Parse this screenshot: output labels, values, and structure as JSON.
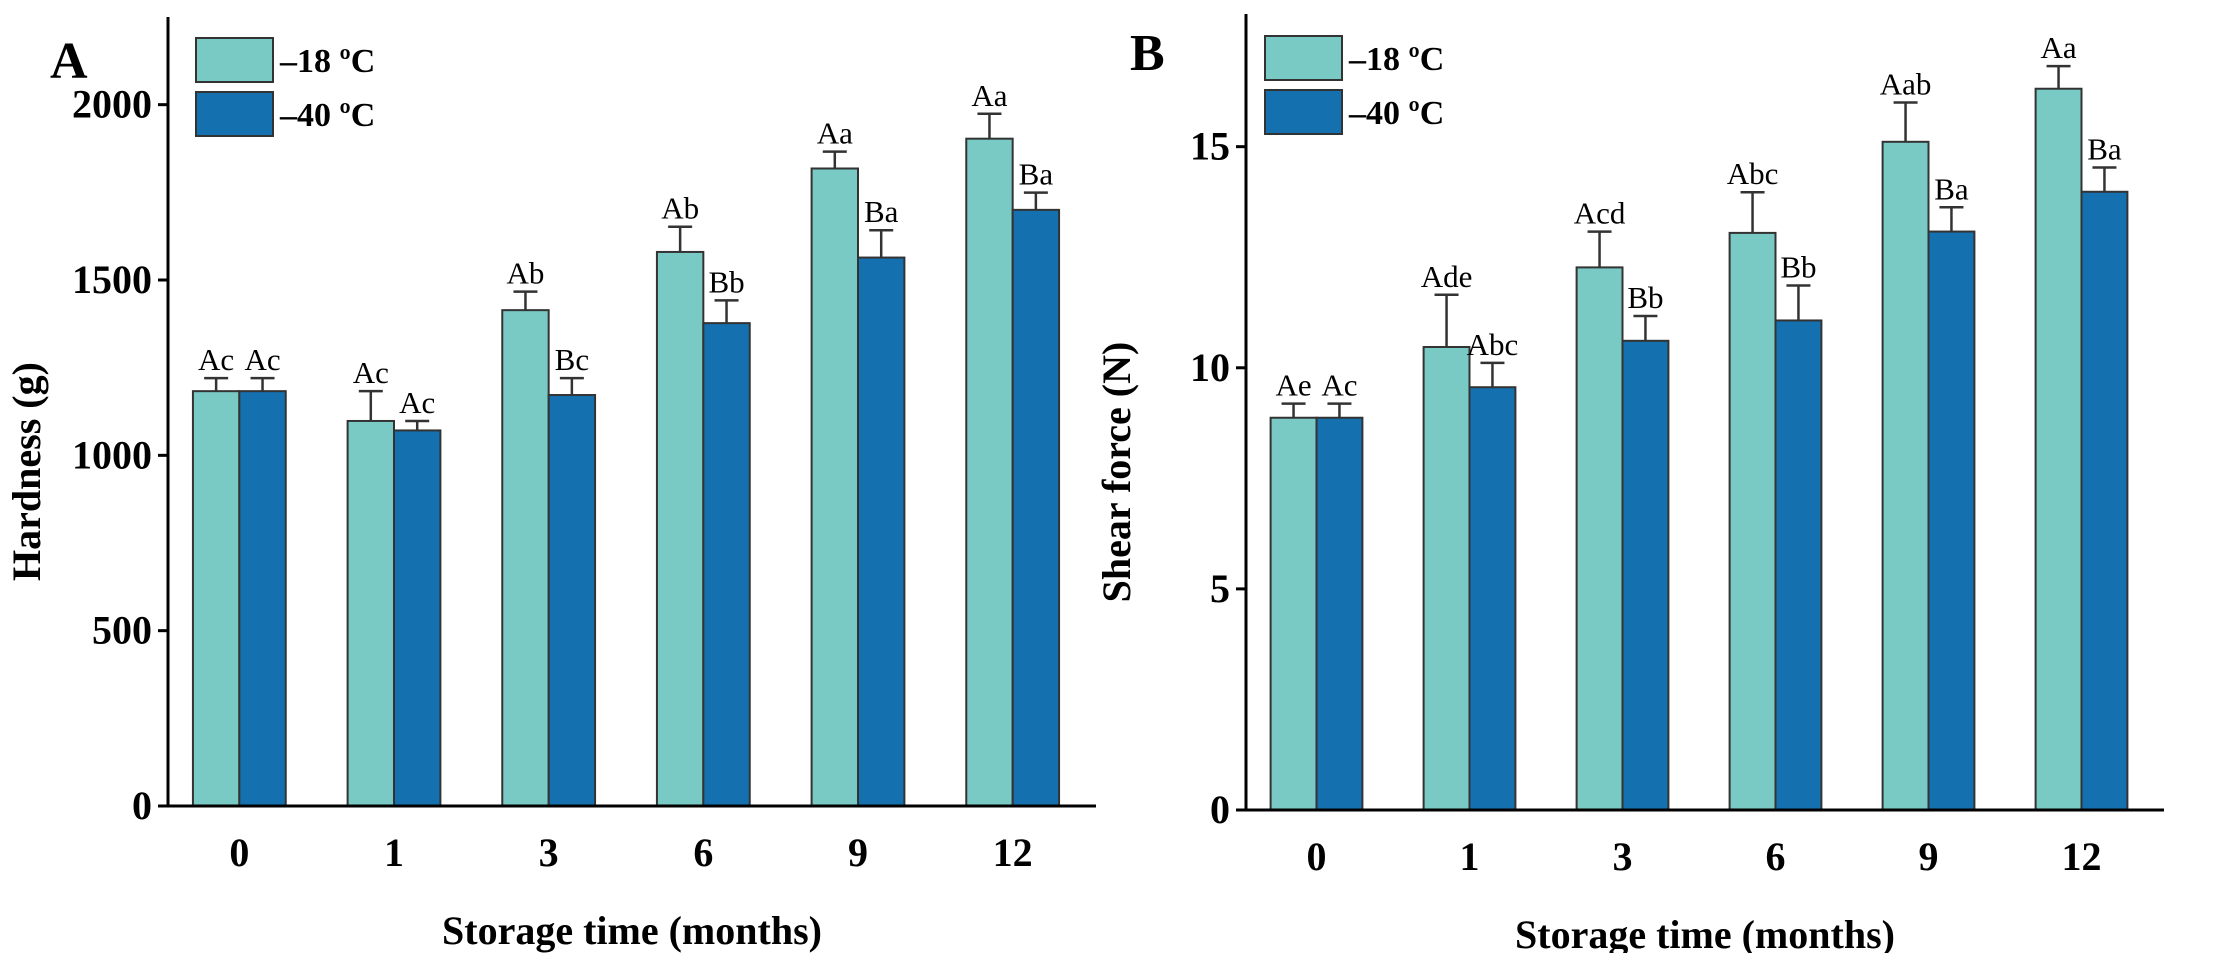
{
  "colors": {
    "s18": "#79C9C4",
    "s40": "#1570B0"
  },
  "chart_data": [
    {
      "type": "bar",
      "panel": "A",
      "title": "",
      "xlabel": "Storage time (months)",
      "ylabel": "Hardness (g)",
      "ylim": [
        0,
        2250
      ],
      "yticks": [
        0,
        500,
        1000,
        1500,
        2000
      ],
      "categories": [
        "0",
        "1",
        "3",
        "6",
        "9",
        "12"
      ],
      "series": [
        {
          "name": "–18 ºC",
          "values": [
            1183,
            1098,
            1414,
            1580,
            1818,
            1903
          ],
          "errors": [
            37,
            85,
            53,
            72,
            48,
            71
          ],
          "labels": [
            "Ac",
            "Ac",
            "Ab",
            "Ab",
            "Aa",
            "Aa"
          ]
        },
        {
          "name": "–40 ºC",
          "values": [
            1183,
            1071,
            1172,
            1377,
            1564,
            1700
          ],
          "errors": [
            37,
            27,
            48,
            65,
            78,
            49
          ],
          "labels": [
            "Ac",
            "Ac",
            "Bc",
            "Bb",
            "Ba",
            "Ba"
          ]
        }
      ],
      "legend": "top-left"
    },
    {
      "type": "bar",
      "panel": "B",
      "title": "",
      "xlabel": "Storage time (months)",
      "ylabel": "Shear force (N)",
      "ylim": [
        0,
        18
      ],
      "yticks": [
        0,
        5,
        10,
        15
      ],
      "categories": [
        "0",
        "1",
        "3",
        "6",
        "9",
        "12"
      ],
      "series": [
        {
          "name": "–18 ºC",
          "values": [
            8.87,
            10.47,
            12.27,
            13.05,
            15.11,
            16.31
          ],
          "errors": [
            0.32,
            1.18,
            0.81,
            0.92,
            0.89,
            0.51
          ],
          "labels": [
            "Ae",
            "Ade",
            "Acd",
            "Abc",
            "Aab",
            "Aa"
          ]
        },
        {
          "name": "–40 ºC",
          "values": [
            8.87,
            9.56,
            10.61,
            11.07,
            13.08,
            13.98
          ],
          "errors": [
            0.32,
            0.55,
            0.56,
            0.79,
            0.55,
            0.55
          ],
          "labels": [
            "Ac",
            "Abc",
            "Bb",
            "Bb",
            "Ba",
            "Ba"
          ]
        }
      ],
      "legend": "top-left"
    }
  ]
}
